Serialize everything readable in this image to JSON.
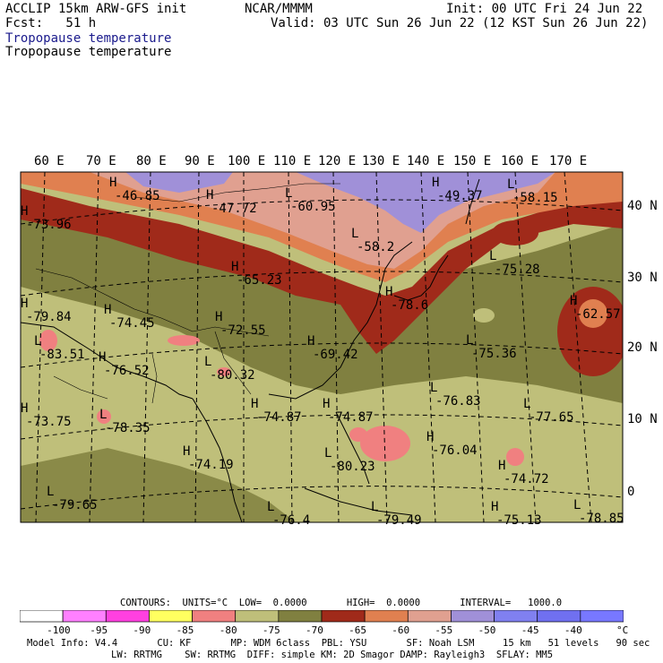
{
  "header": {
    "model_title": "ACCLIP 15km ARW-GFS init",
    "forecast_label": "Fcst:   51 h",
    "org": "NCAR/MMMM",
    "init": "Init: 00 UTC Fri 24 Jun 22",
    "valid": "Valid: 03 UTC Sun 26 Jun 22 (12 KST Sun 26 Jun 22)",
    "field_title_1": "Tropopause temperature",
    "field_title_2": "Tropopause temperature"
  },
  "map": {
    "lon_labels": [
      "60 E",
      "70 E",
      "80 E",
      "90 E",
      "100 E",
      "110 E",
      "120 E",
      "130 E",
      "140 E",
      "150 E",
      "160 E",
      "170 E"
    ],
    "lat_labels": [
      "40 N",
      "30 N",
      "20 N",
      "10 N",
      "0"
    ],
    "extrema": [
      {
        "tag": "H",
        "value": "-46.85"
      },
      {
        "tag": "H",
        "value": "-47.72"
      },
      {
        "tag": "L",
        "value": "-60.95"
      },
      {
        "tag": "L",
        "value": "-58.2"
      },
      {
        "tag": "H",
        "value": "-49.37"
      },
      {
        "tag": "L",
        "value": "-58.15"
      },
      {
        "tag": "H",
        "value": "-65.23"
      },
      {
        "tag": "L",
        "value": "-75.28"
      },
      {
        "tag": "H",
        "value": "-62.57"
      },
      {
        "tag": "H",
        "value": "-74.45"
      },
      {
        "tag": "H",
        "value": "-72.55"
      },
      {
        "tag": "H",
        "value": "-69.42"
      },
      {
        "tag": "L",
        "value": "-75.36"
      },
      {
        "tag": "L",
        "value": "-83.51"
      },
      {
        "tag": "H",
        "value": "-76.52"
      },
      {
        "tag": "L",
        "value": "-80.32"
      },
      {
        "tag": "L",
        "value": "-76.83"
      },
      {
        "tag": "L",
        "value": "-78.35"
      },
      {
        "tag": "H",
        "value": "-74.87"
      },
      {
        "tag": "H",
        "value": "-74.87"
      },
      {
        "tag": "L",
        "value": "-77.65"
      },
      {
        "tag": "H",
        "value": "-76.04"
      },
      {
        "tag": "H",
        "value": "-74.19"
      },
      {
        "tag": "L",
        "value": "-80.23"
      },
      {
        "tag": "H",
        "value": "-74.72"
      },
      {
        "tag": "L",
        "value": "-79.65"
      },
      {
        "tag": "L",
        "value": "-76.4"
      },
      {
        "tag": "L",
        "value": "-79.49"
      },
      {
        "tag": "H",
        "value": "-75.13"
      },
      {
        "tag": "L",
        "value": "-78.85"
      },
      {
        "tag": "H",
        "value": "-73.96"
      },
      {
        "tag": "H",
        "value": "-73.75"
      },
      {
        "tag": "H",
        "value": "-79.84"
      },
      {
        "tag": "H",
        "value": "-78.6"
      }
    ]
  },
  "contours": {
    "line": "CONTOURS:  UNITS=°C  LOW=  0.0000       HIGH=  0.0000       INTERVAL=   1000.0"
  },
  "colorbar": {
    "colors": [
      "#ffffff",
      "#ff80ff",
      "#ff40e0",
      "#ffff60",
      "#f08080",
      "#bfbf7a",
      "#808040",
      "#a02a1a",
      "#e08050",
      "#e0a090",
      "#a090d8",
      "#8080f0",
      "#7070f0",
      "#7878ff"
    ],
    "ticks": [
      "-100",
      "-95",
      "-90",
      "-85",
      "-80",
      "-75",
      "-70",
      "-65",
      "-60",
      "-55",
      "-50",
      "-45",
      "-40"
    ],
    "unit": "°C"
  },
  "footer": {
    "line1": "Model Info: V4.4       CU: KF       MP: WDM 6class  PBL: YSU       SF: Noah LSM     15 km   51 levels   90 sec",
    "line2": "LW: RRTMG    SW: RRTMG  DIFF: simple KM: 2D Smagor DAMP: Rayleigh3  SFLAY: MM5"
  }
}
